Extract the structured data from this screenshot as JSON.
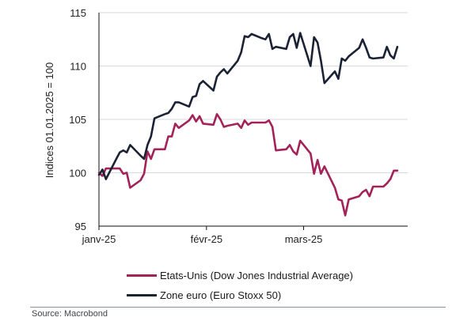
{
  "chart_data": {
    "type": "line",
    "ylabel": "Indices 01.01.2025 = 100",
    "xlabel": "",
    "ylim": [
      95,
      115
    ],
    "yticks": [
      95,
      100,
      105,
      110,
      115
    ],
    "xlim": [
      "2025-01-01",
      "2025-03-31"
    ],
    "xticks": [
      {
        "label": "janv-25",
        "date": "2025-01-01"
      },
      {
        "label": "févr-25",
        "date": "2025-02-01"
      },
      {
        "label": "mars-25",
        "date": "2025-03-01"
      }
    ],
    "grid": "horizontal",
    "legend_placement": "bottom",
    "series": [
      {
        "name": "Etats-Unis (Dow Jones Industrial Average)",
        "color": "#a3225a",
        "points": [
          [
            "2025-01-01",
            100.0
          ],
          [
            "2025-01-02",
            99.7
          ],
          [
            "2025-01-03",
            100.4
          ],
          [
            "2025-01-06",
            100.4
          ],
          [
            "2025-01-07",
            100.4
          ],
          [
            "2025-01-08",
            99.9
          ],
          [
            "2025-01-09",
            100.0
          ],
          [
            "2025-01-10",
            98.6
          ],
          [
            "2025-01-13",
            99.3
          ],
          [
            "2025-01-14",
            99.9
          ],
          [
            "2025-01-15",
            102.0
          ],
          [
            "2025-01-16",
            101.3
          ],
          [
            "2025-01-17",
            102.2
          ],
          [
            "2025-01-20",
            102.2
          ],
          [
            "2025-01-21",
            103.4
          ],
          [
            "2025-01-22",
            103.4
          ],
          [
            "2025-01-23",
            104.6
          ],
          [
            "2025-01-24",
            104.2
          ],
          [
            "2025-01-27",
            104.9
          ],
          [
            "2025-01-28",
            105.4
          ],
          [
            "2025-01-29",
            104.8
          ],
          [
            "2025-01-30",
            105.3
          ],
          [
            "2025-01-31",
            104.6
          ],
          [
            "2025-02-03",
            104.5
          ],
          [
            "2025-02-04",
            105.5
          ],
          [
            "2025-02-05",
            105.0
          ],
          [
            "2025-02-06",
            104.3
          ],
          [
            "2025-02-07",
            104.4
          ],
          [
            "2025-02-10",
            104.6
          ],
          [
            "2025-02-11",
            104.2
          ],
          [
            "2025-02-12",
            104.9
          ],
          [
            "2025-02-13",
            104.5
          ],
          [
            "2025-02-14",
            104.7
          ],
          [
            "2025-02-17",
            104.7
          ],
          [
            "2025-02-18",
            104.7
          ],
          [
            "2025-02-19",
            104.9
          ],
          [
            "2025-02-20",
            104.3
          ],
          [
            "2025-02-21",
            102.1
          ],
          [
            "2025-02-24",
            102.2
          ],
          [
            "2025-02-25",
            102.6
          ],
          [
            "2025-02-26",
            102.0
          ],
          [
            "2025-02-27",
            101.7
          ],
          [
            "2025-02-28",
            103.0
          ],
          [
            "2025-03-03",
            101.8
          ],
          [
            "2025-03-04",
            99.9
          ],
          [
            "2025-03-05",
            101.2
          ],
          [
            "2025-03-06",
            99.9
          ],
          [
            "2025-03-07",
            100.6
          ],
          [
            "2025-03-10",
            98.6
          ],
          [
            "2025-03-11",
            97.5
          ],
          [
            "2025-03-12",
            97.4
          ],
          [
            "2025-03-13",
            96.0
          ],
          [
            "2025-03-14",
            97.5
          ],
          [
            "2025-03-17",
            97.8
          ],
          [
            "2025-03-18",
            98.2
          ],
          [
            "2025-03-19",
            98.4
          ],
          [
            "2025-03-20",
            97.8
          ],
          [
            "2025-03-21",
            98.7
          ],
          [
            "2025-03-24",
            98.7
          ],
          [
            "2025-03-25",
            99.0
          ],
          [
            "2025-03-26",
            99.4
          ],
          [
            "2025-03-27",
            100.2
          ],
          [
            "2025-03-28",
            100.2
          ]
        ]
      },
      {
        "name": "Zone euro (Euro Stoxx 50)",
        "color": "#1b2233",
        "points": [
          [
            "2025-01-01",
            99.8
          ],
          [
            "2025-01-02",
            100.3
          ],
          [
            "2025-01-03",
            99.4
          ],
          [
            "2025-01-06",
            101.3
          ],
          [
            "2025-01-07",
            101.9
          ],
          [
            "2025-01-08",
            102.1
          ],
          [
            "2025-01-09",
            101.9
          ],
          [
            "2025-01-10",
            102.6
          ],
          [
            "2025-01-13",
            101.6
          ],
          [
            "2025-01-14",
            101.3
          ],
          [
            "2025-01-15",
            102.6
          ],
          [
            "2025-01-16",
            103.4
          ],
          [
            "2025-01-17",
            105.1
          ],
          [
            "2025-01-20",
            105.5
          ],
          [
            "2025-01-21",
            105.6
          ],
          [
            "2025-01-22",
            106.0
          ],
          [
            "2025-01-23",
            106.6
          ],
          [
            "2025-01-24",
            106.6
          ],
          [
            "2025-01-27",
            106.2
          ],
          [
            "2025-01-28",
            107.1
          ],
          [
            "2025-01-29",
            107.2
          ],
          [
            "2025-01-30",
            108.3
          ],
          [
            "2025-01-31",
            108.6
          ],
          [
            "2025-02-03",
            107.7
          ],
          [
            "2025-02-04",
            109.0
          ],
          [
            "2025-02-05",
            109.4
          ],
          [
            "2025-02-06",
            109.7
          ],
          [
            "2025-02-07",
            109.3
          ],
          [
            "2025-02-10",
            110.5
          ],
          [
            "2025-02-11",
            111.3
          ],
          [
            "2025-02-12",
            112.8
          ],
          [
            "2025-02-13",
            112.7
          ],
          [
            "2025-02-14",
            113.0
          ],
          [
            "2025-02-17",
            112.6
          ],
          [
            "2025-02-18",
            112.5
          ],
          [
            "2025-02-19",
            113.0
          ],
          [
            "2025-02-20",
            111.6
          ],
          [
            "2025-02-21",
            111.8
          ],
          [
            "2025-02-24",
            111.6
          ],
          [
            "2025-02-25",
            112.7
          ],
          [
            "2025-02-26",
            113.0
          ],
          [
            "2025-02-27",
            111.7
          ],
          [
            "2025-02-28",
            113.1
          ],
          [
            "2025-03-03",
            110.0
          ],
          [
            "2025-03-04",
            112.7
          ],
          [
            "2025-03-05",
            112.2
          ],
          [
            "2025-03-06",
            110.5
          ],
          [
            "2025-03-07",
            108.4
          ],
          [
            "2025-03-10",
            109.5
          ],
          [
            "2025-03-11",
            108.8
          ],
          [
            "2025-03-12",
            110.7
          ],
          [
            "2025-03-13",
            110.5
          ],
          [
            "2025-03-14",
            110.9
          ],
          [
            "2025-03-17",
            111.7
          ],
          [
            "2025-03-18",
            112.5
          ],
          [
            "2025-03-19",
            111.7
          ],
          [
            "2025-03-20",
            110.8
          ],
          [
            "2025-03-21",
            110.7
          ],
          [
            "2025-03-24",
            110.8
          ],
          [
            "2025-03-25",
            111.8
          ],
          [
            "2025-03-26",
            111.0
          ],
          [
            "2025-03-27",
            110.7
          ],
          [
            "2025-03-28",
            111.8
          ]
        ]
      }
    ]
  },
  "source": "Source: Macrobond"
}
